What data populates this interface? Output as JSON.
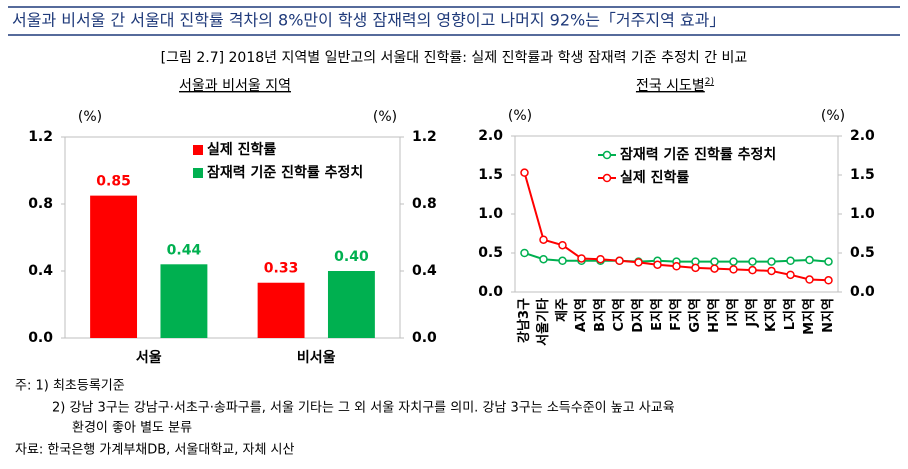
{
  "header": {
    "title": "서울과 비서울 간 서울대 진학률 격차의 8%만이 학생 잠재력의 영향이고 나머지 92%는「거주지역 효과」",
    "figure_title": "[그림 2.7] 2018년 지역별 일반고의 서울대 진학률: 실제 진학률과 학생 잠재력 기준 추정치 간 비교"
  },
  "chart_data": [
    {
      "type": "bar",
      "subtitle": "서울과 비서울 지역",
      "ylabel": "(%)",
      "y2label": "(%)",
      "categories": [
        "서울",
        "비서울"
      ],
      "series": [
        {
          "name": "실제 진학률",
          "color": "#ff0000",
          "values": [
            0.85,
            0.33
          ],
          "value_labels": [
            "0.85",
            "0.33"
          ]
        },
        {
          "name": "잠재력 기준 진학률 추정치",
          "color": "#00b050",
          "values": [
            0.44,
            0.4
          ],
          "value_labels": [
            "0.44",
            "0.40"
          ]
        }
      ],
      "ylim": [
        0,
        1.2
      ],
      "yticks": [
        {
          "value": 0,
          "label": "0.0"
        },
        0.4,
        0.8,
        1.2
      ],
      "y2lim": [
        0,
        1.2
      ],
      "y2ticks": [
        {
          "value": 0,
          "label": "0.0"
        },
        0.4,
        0.8,
        1.2
      ]
    },
    {
      "type": "line",
      "subtitle": "전국 시도별",
      "subtitle_note": "2)",
      "ylabel": "(%)",
      "y2label": "(%)",
      "categories": [
        "강남3구",
        "서울기타",
        "제주",
        "A지역",
        "B지역",
        "C지역",
        "D지역",
        "E지역",
        "F지역",
        "G지역",
        "H지역",
        "I지역",
        "J지역",
        "K지역",
        "L지역",
        "M지역",
        "N지역"
      ],
      "series": [
        {
          "name": "잠재력 기준 진학률 추정치",
          "color": "#00b050",
          "values": [
            0.5,
            0.42,
            0.4,
            0.4,
            0.4,
            0.4,
            0.39,
            0.4,
            0.39,
            0.39,
            0.39,
            0.39,
            0.39,
            0.39,
            0.4,
            0.41,
            0.39
          ]
        },
        {
          "name": "실제 진학률",
          "color": "#ff0000",
          "values": [
            1.53,
            0.67,
            0.6,
            0.43,
            0.42,
            0.4,
            0.38,
            0.35,
            0.33,
            0.31,
            0.3,
            0.29,
            0.28,
            0.27,
            0.22,
            0.16,
            0.15
          ]
        }
      ],
      "ylim": [
        0,
        2
      ],
      "yticks": [
        {
          "value": 0,
          "label": "0.0"
        },
        0.5,
        {
          "value": 1,
          "label": "1.0"
        },
        1.5,
        {
          "value": 2,
          "label": "2.0"
        }
      ],
      "y2lim": [
        0,
        2
      ],
      "y2ticks": [
        {
          "value": 0,
          "label": "0.0"
        },
        0.5,
        {
          "value": 1,
          "label": "1.0"
        },
        1.5,
        {
          "value": 2,
          "label": "2.0"
        }
      ]
    }
  ],
  "notes": [
    "주: 1) 최초등록기준",
    "2) 강남 3구는 강남구·서초구·송파구를, 서울 기타는 그 외 서울 자치구를 의미. 강남 3구는 소득수준이 높고 사교육",
    "환경이 좋아 별도 분류",
    "자료: 한국은행 가계부채DB, 서울대학교, 자체 시산"
  ]
}
